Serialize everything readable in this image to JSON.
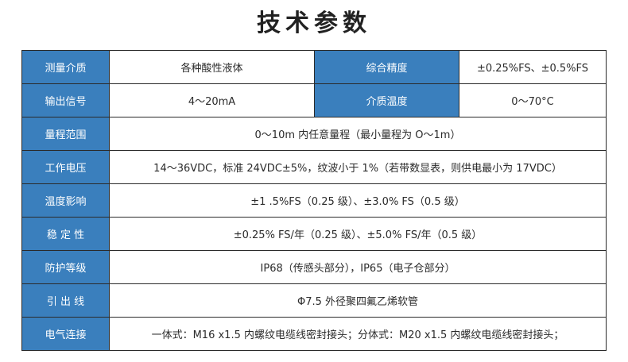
{
  "title": "技术参数",
  "rows": [
    {
      "label": "测量介质",
      "value": "各种酸性液体",
      "label2": "综合精度",
      "value2": "±0.25%FS、±0.5%FS"
    },
    {
      "label": "输出信号",
      "value": "4～20mA",
      "label2": "介质温度",
      "value2": "0～70°C"
    },
    {
      "label": "量程范围",
      "value": "0～10m 内任意量程（最小量程为 O～1m）"
    },
    {
      "label": "工作电压",
      "value": "14～36VDC，标准 24VDC±5%，纹波小于 1%（若带数显表，则供电最小为 17VDC）"
    },
    {
      "label": "温度影响",
      "value": "±1 .5%FS（0.25 级）、±3.0% FS（0.5 级）"
    },
    {
      "label": "稳 定 性",
      "value": "±0.25% FS/年（0.25 级）、±5.0% FS/年（0.5 级）"
    },
    {
      "label": "防护等级",
      "value": "IP68（传感头部分），IP65（电子仓部分）"
    },
    {
      "label": "引 出 线",
      "value": "Φ7.5 外径聚四氟乙烯软管"
    },
    {
      "label": "电气连接",
      "value": "一体式：M16 x1.5 内螺纹电缆线密封接头；分体式：M20 x1.5 内螺纹电缆线密封接头；"
    }
  ]
}
